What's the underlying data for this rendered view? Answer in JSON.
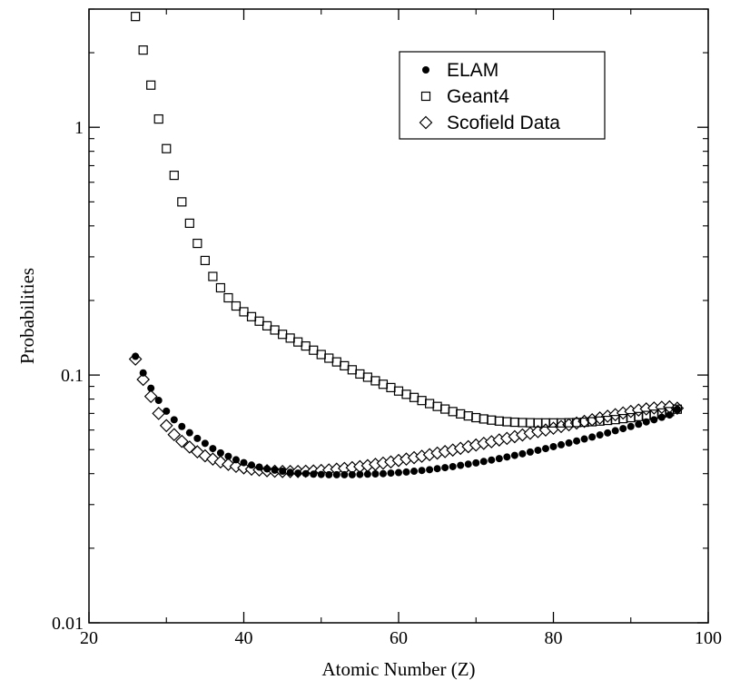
{
  "chart_data": {
    "type": "scatter",
    "title": "",
    "xlabel": "Atomic Number (Z)",
    "ylabel": "Probabilities",
    "xlim": [
      20,
      100
    ],
    "ylim": [
      0.01,
      3.0
    ],
    "yscale": "log",
    "grid": false,
    "legend_position": "top-right",
    "x_ticks": [
      {
        "value": 20,
        "label": "20"
      },
      {
        "value": 40,
        "label": "40"
      },
      {
        "value": 60,
        "label": "60"
      },
      {
        "value": 80,
        "label": "80"
      },
      {
        "value": 100,
        "label": "100"
      }
    ],
    "y_ticks": [
      {
        "value": 0.01,
        "label": "0.01"
      },
      {
        "value": 0.1,
        "label": "0.1"
      },
      {
        "value": 1,
        "label": "1"
      }
    ],
    "series": [
      {
        "name": "ELAM",
        "marker": "filled-circle",
        "x": [
          26,
          27,
          28,
          29,
          30,
          31,
          32,
          33,
          34,
          35,
          36,
          37,
          38,
          39,
          40,
          41,
          42,
          43,
          44,
          45,
          46,
          47,
          48,
          49,
          50,
          51,
          52,
          53,
          54,
          55,
          56,
          57,
          58,
          59,
          60,
          61,
          62,
          63,
          64,
          65,
          66,
          67,
          68,
          69,
          70,
          71,
          72,
          73,
          74,
          75,
          76,
          77,
          78,
          79,
          80,
          81,
          82,
          83,
          84,
          85,
          86,
          87,
          88,
          89,
          90,
          91,
          92,
          93,
          94,
          95,
          96
        ],
        "y": [
          0.119,
          0.102,
          0.0885,
          0.079,
          0.0715,
          0.066,
          0.062,
          0.0585,
          0.0555,
          0.053,
          0.0505,
          0.0485,
          0.047,
          0.0455,
          0.0443,
          0.0433,
          0.0425,
          0.0418,
          0.0413,
          0.0409,
          0.0405,
          0.0402,
          0.04,
          0.0398,
          0.0397,
          0.0396,
          0.0396,
          0.0396,
          0.0396,
          0.0397,
          0.0398,
          0.0399,
          0.04,
          0.0402,
          0.0404,
          0.0406,
          0.0409,
          0.0412,
          0.0415,
          0.0419,
          0.0423,
          0.0427,
          0.0432,
          0.0437,
          0.0442,
          0.0448,
          0.0454,
          0.046,
          0.0467,
          0.0474,
          0.0481,
          0.0489,
          0.0497,
          0.0505,
          0.0514,
          0.0523,
          0.0532,
          0.0542,
          0.0552,
          0.0562,
          0.0573,
          0.0584,
          0.0596,
          0.0608,
          0.062,
          0.0633,
          0.0647,
          0.066,
          0.0675,
          0.069,
          0.0728
        ]
      },
      {
        "name": "Geant4",
        "marker": "open-square",
        "x": [
          26,
          27,
          28,
          29,
          30,
          31,
          32,
          33,
          34,
          35,
          36,
          37,
          38,
          39,
          40,
          41,
          42,
          43,
          44,
          45,
          46,
          47,
          48,
          49,
          50,
          51,
          52,
          53,
          54,
          55,
          56,
          57,
          58,
          59,
          60,
          61,
          62,
          63,
          64,
          65,
          66,
          67,
          68,
          69,
          70,
          71,
          72,
          73,
          74,
          75,
          76,
          77,
          78,
          79,
          80,
          81,
          82,
          83,
          84,
          85,
          86,
          87,
          88,
          89,
          90,
          91,
          92,
          93,
          94,
          95,
          96
        ],
        "y": [
          2.8,
          2.05,
          1.48,
          1.08,
          0.82,
          0.64,
          0.5,
          0.41,
          0.34,
          0.29,
          0.25,
          0.225,
          0.205,
          0.19,
          0.18,
          0.172,
          0.165,
          0.158,
          0.152,
          0.146,
          0.141,
          0.136,
          0.131,
          0.126,
          0.121,
          0.117,
          0.113,
          0.109,
          0.105,
          0.101,
          0.098,
          0.0948,
          0.0918,
          0.089,
          0.0862,
          0.0836,
          0.0812,
          0.0789,
          0.0767,
          0.0747,
          0.0729,
          0.0712,
          0.0697,
          0.0684,
          0.0673,
          0.0665,
          0.0658,
          0.0652,
          0.0648,
          0.0645,
          0.0643,
          0.0642,
          0.0641,
          0.0641,
          0.0641,
          0.0641,
          0.0642,
          0.0643,
          0.0645,
          0.0648,
          0.0652,
          0.0656,
          0.0661,
          0.0667,
          0.0673,
          0.068,
          0.0687,
          0.0695,
          0.0703,
          0.0712,
          0.0728
        ]
      },
      {
        "name": "Scofield Data",
        "marker": "open-diamond",
        "x": [
          26,
          27,
          28,
          29,
          30,
          31,
          32,
          33,
          34,
          35,
          36,
          37,
          38,
          39,
          40,
          41,
          42,
          43,
          44,
          45,
          46,
          47,
          48,
          49,
          50,
          51,
          52,
          53,
          54,
          55,
          56,
          57,
          58,
          59,
          60,
          61,
          62,
          63,
          64,
          65,
          66,
          67,
          68,
          69,
          70,
          71,
          72,
          73,
          74,
          75,
          76,
          77,
          78,
          79,
          80,
          81,
          82,
          83,
          84,
          85,
          86,
          87,
          88,
          89,
          90,
          91,
          92,
          93,
          94,
          95,
          96
        ],
        "y": [
          0.116,
          0.096,
          0.082,
          0.07,
          0.0625,
          0.0575,
          0.054,
          0.0512,
          0.049,
          0.0472,
          0.0458,
          0.0446,
          0.0436,
          0.0428,
          0.0422,
          0.0417,
          0.0414,
          0.0411,
          0.0409,
          0.0408,
          0.0408,
          0.0408,
          0.0409,
          0.041,
          0.0412,
          0.0414,
          0.0417,
          0.042,
          0.0423,
          0.0427,
          0.0431,
          0.0436,
          0.0441,
          0.0446,
          0.0452,
          0.0458,
          0.0464,
          0.047,
          0.0477,
          0.0484,
          0.0491,
          0.0498,
          0.0506,
          0.0514,
          0.0522,
          0.053,
          0.0538,
          0.0547,
          0.0555,
          0.0564,
          0.0573,
          0.0582,
          0.0591,
          0.06,
          0.061,
          0.062,
          0.063,
          0.064,
          0.065,
          0.066,
          0.0671,
          0.0682,
          0.0692,
          0.0703,
          0.0713,
          0.0722,
          0.073,
          0.0736,
          0.0741,
          0.0744,
          0.0735
        ]
      }
    ]
  }
}
